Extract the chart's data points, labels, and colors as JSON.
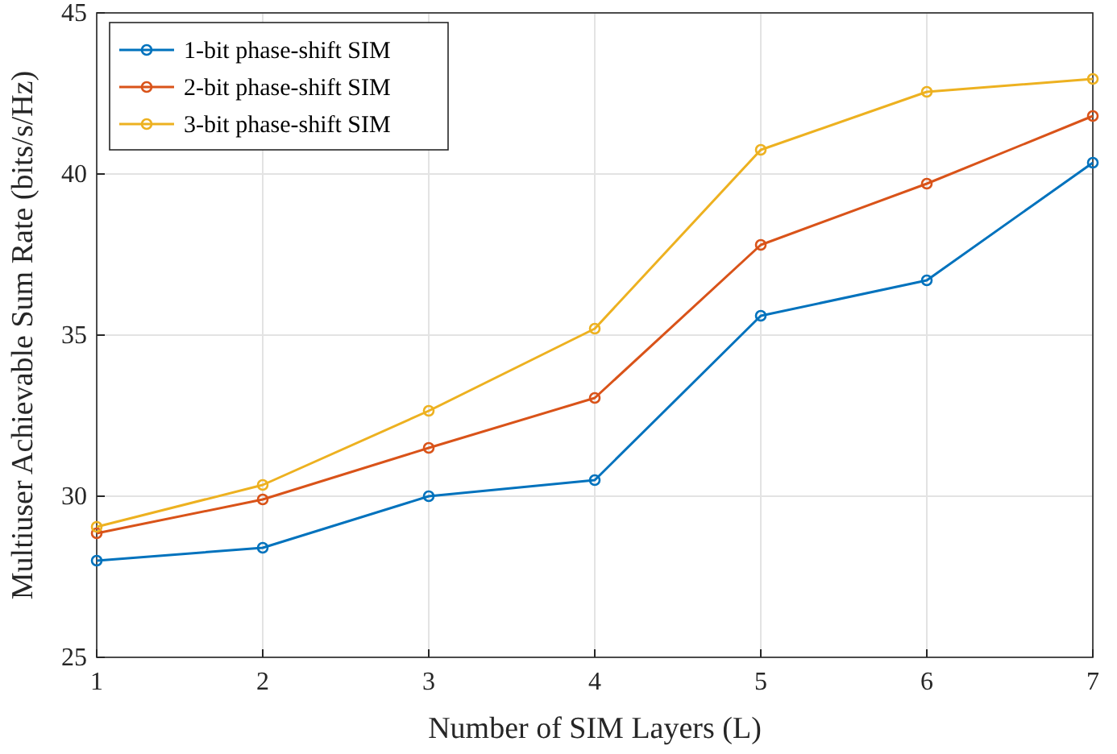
{
  "chart_data": {
    "type": "line",
    "xlabel": "Number of SIM Layers (L)",
    "ylabel": "Multiuser Achievable Sum Rate (bits/s/Hz)",
    "x": [
      1,
      2,
      3,
      4,
      5,
      6,
      7
    ],
    "xlim": [
      1,
      7
    ],
    "xticks": [
      1,
      2,
      3,
      4,
      5,
      6,
      7
    ],
    "ylim": [
      25,
      45
    ],
    "yticks": [
      25,
      30,
      35,
      40,
      45
    ],
    "grid": true,
    "legend": "top left",
    "marker": "circle",
    "line_style": "solid",
    "series": [
      {
        "name": "1-bit phase-shift SIM",
        "color": "#0072bd",
        "values": [
          28.0,
          28.4,
          30.0,
          30.5,
          35.6,
          36.7,
          40.35
        ]
      },
      {
        "name": "2-bit phase-shift SIM",
        "color": "#d95319",
        "values": [
          28.85,
          29.9,
          31.5,
          33.05,
          37.8,
          39.7,
          41.8
        ]
      },
      {
        "name": "3-bit phase-shift SIM",
        "color": "#edb120",
        "values": [
          29.05,
          30.35,
          32.65,
          35.2,
          40.75,
          42.55,
          42.95
        ]
      }
    ]
  }
}
